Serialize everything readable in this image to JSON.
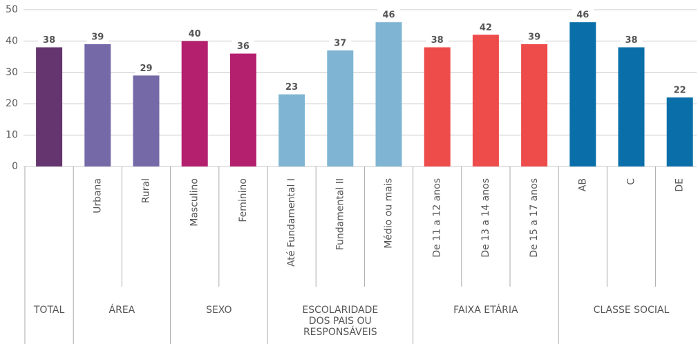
{
  "chart_data": {
    "type": "bar",
    "ylim": [
      0,
      50
    ],
    "yticks": [
      0,
      10,
      20,
      30,
      40,
      50
    ],
    "grid": true,
    "groups": [
      {
        "name": "TOTAL",
        "categories": [
          null
        ],
        "values": [
          38
        ],
        "color": "#64356e"
      },
      {
        "name": "ÁREA",
        "categories": [
          "Urbana",
          "Rural"
        ],
        "values": [
          39,
          29
        ],
        "color": "#7569a8"
      },
      {
        "name": "SEXO",
        "categories": [
          "Masculino",
          "Feminino"
        ],
        "values": [
          40,
          36
        ],
        "color": "#b41f6e"
      },
      {
        "name": "ESCOLARIDADE DOS PAIS OU RESPONSÁVEIS",
        "categories": [
          "Até Fundamental I",
          "Fundamental II",
          "Médio ou mais"
        ],
        "values": [
          23,
          37,
          46
        ],
        "color": "#7fb5d3"
      },
      {
        "name": "FAIXA ETÁRIA",
        "categories": [
          "De 11 a 12 anos",
          "De 13 a 14 anos",
          "De 15 a 17 anos"
        ],
        "values": [
          38,
          42,
          39
        ],
        "color": "#ee4b4b"
      },
      {
        "name": "CLASSE SOCIAL",
        "categories": [
          "AB",
          "C",
          "DE"
        ],
        "values": [
          46,
          38,
          22
        ],
        "color": "#0a6fa8"
      }
    ]
  }
}
